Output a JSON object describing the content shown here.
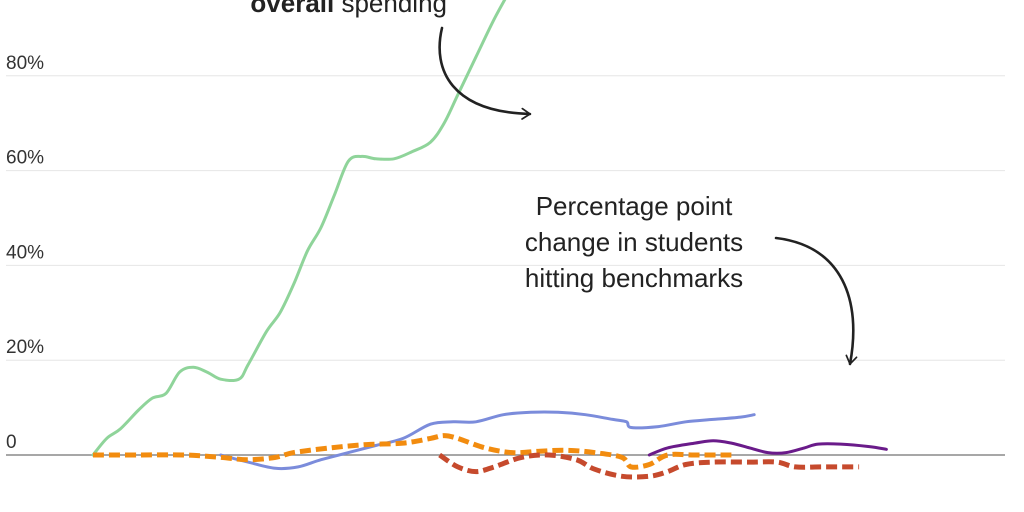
{
  "chart_data": {
    "type": "line",
    "y_axis": {
      "ticks": [
        0,
        20,
        40,
        60,
        80
      ],
      "tick_labels": [
        "0",
        "20%",
        "40%",
        "60%",
        "80%"
      ],
      "ylim": [
        -5,
        100
      ],
      "grid": true
    },
    "x_domain": [
      0,
      100
    ],
    "annotations": {
      "spending": {
        "bold": "overall",
        "rest": " spending"
      },
      "benchmarks": {
        "lines": [
          "Percentage point",
          "change in students",
          "hitting benchmarks"
        ]
      }
    },
    "series": [
      {
        "color": "#8fd49a",
        "style": "solid",
        "points": [
          [
            0,
            0
          ],
          [
            1.5,
            3.5
          ],
          [
            3,
            5.5
          ],
          [
            5,
            9.5
          ],
          [
            6.5,
            12
          ],
          [
            8,
            13
          ],
          [
            9.5,
            17.5
          ],
          [
            11,
            18.5
          ],
          [
            12.5,
            17.5
          ],
          [
            14,
            16
          ],
          [
            16,
            16
          ],
          [
            17,
            19
          ],
          [
            19,
            26
          ],
          [
            20.5,
            30
          ],
          [
            22,
            36
          ],
          [
            23.5,
            43
          ],
          [
            25,
            48
          ],
          [
            26.5,
            55
          ],
          [
            28,
            62
          ],
          [
            29.5,
            63
          ],
          [
            31,
            62.5
          ],
          [
            33,
            62.5
          ],
          [
            35,
            64
          ],
          [
            37,
            66
          ],
          [
            38.5,
            70
          ],
          [
            40,
            76
          ],
          [
            42,
            84
          ],
          [
            44,
            92
          ],
          [
            46,
            99
          ],
          [
            46.8,
            102
          ]
        ]
      },
      {
        "color": "#7b8cdb",
        "style": "solid",
        "points": [
          [
            14,
            0
          ],
          [
            17,
            -1.5
          ],
          [
            20,
            -2.8
          ],
          [
            22.5,
            -2.5
          ],
          [
            25,
            -1
          ],
          [
            28,
            0.5
          ],
          [
            31,
            2
          ],
          [
            34,
            3.5
          ],
          [
            37,
            6.5
          ],
          [
            39.5,
            7
          ],
          [
            42,
            7
          ],
          [
            45,
            8.5
          ],
          [
            48,
            9
          ],
          [
            51,
            9
          ],
          [
            54,
            8.5
          ],
          [
            57,
            7.5
          ],
          [
            58.5,
            7
          ],
          [
            59,
            5.8
          ],
          [
            62,
            6
          ],
          [
            65,
            7
          ],
          [
            68,
            7.5
          ],
          [
            71,
            8
          ],
          [
            72.5,
            8.5
          ]
        ]
      },
      {
        "color": "#f28c0f",
        "style": "dashed",
        "points": [
          [
            0,
            0
          ],
          [
            5,
            0
          ],
          [
            10,
            0
          ],
          [
            14,
            -0.5
          ],
          [
            17,
            -1
          ],
          [
            20,
            -0.5
          ],
          [
            22,
            0.5
          ],
          [
            26,
            1.5
          ],
          [
            30,
            2.2
          ],
          [
            34,
            2.5
          ],
          [
            37,
            3.5
          ],
          [
            38.5,
            4.1
          ],
          [
            40,
            3.5
          ],
          [
            43,
            1.5
          ],
          [
            46,
            0.5
          ],
          [
            49,
            0.8
          ],
          [
            52,
            1
          ],
          [
            55,
            0.5
          ],
          [
            58,
            -0.5
          ],
          [
            59,
            -2.5
          ],
          [
            61,
            -2
          ],
          [
            63,
            0
          ],
          [
            66,
            0
          ],
          [
            70,
            0
          ]
        ]
      },
      {
        "color": "#c64a2d",
        "style": "dashed",
        "points": [
          [
            38,
            0
          ],
          [
            40,
            -2.5
          ],
          [
            42,
            -3.5
          ],
          [
            44,
            -2.5
          ],
          [
            47,
            -0.5
          ],
          [
            50,
            0
          ],
          [
            53,
            -1
          ],
          [
            55,
            -3
          ],
          [
            58,
            -4.5
          ],
          [
            61,
            -4.5
          ],
          [
            63,
            -3.5
          ],
          [
            65,
            -2
          ],
          [
            68,
            -1.5
          ],
          [
            72,
            -1.5
          ],
          [
            75,
            -1.5
          ],
          [
            77,
            -2.5
          ],
          [
            80,
            -2.5
          ],
          [
            84,
            -2.5
          ]
        ]
      },
      {
        "color": "#6a1b8a",
        "style": "solid",
        "points": [
          [
            61,
            0
          ],
          [
            63,
            1.5
          ],
          [
            66,
            2.5
          ],
          [
            68,
            3
          ],
          [
            70,
            2.5
          ],
          [
            72,
            1.5
          ],
          [
            74,
            0.5
          ],
          [
            76,
            0.5
          ],
          [
            78,
            1.5
          ],
          [
            79.5,
            2.3
          ],
          [
            82,
            2.3
          ],
          [
            85,
            1.8
          ],
          [
            87,
            1.2
          ]
        ]
      }
    ]
  }
}
